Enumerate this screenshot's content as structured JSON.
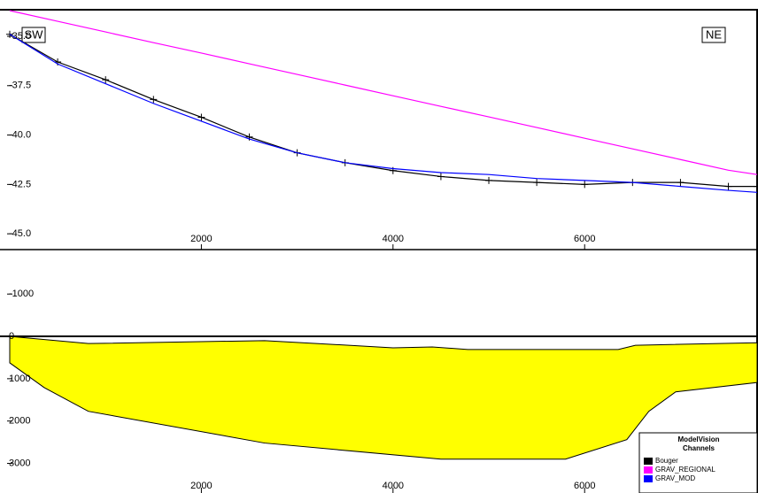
{
  "chart_data": [
    {
      "type": "line",
      "annotations": [
        "SW",
        "NE"
      ],
      "x": [
        0,
        500,
        1000,
        1500,
        2000,
        2500,
        3000,
        3500,
        4000,
        4500,
        5000,
        5500,
        6000,
        6500,
        7000,
        7500,
        7800
      ],
      "series": [
        {
          "name": "Bouger",
          "color": "#000000",
          "marker": "+",
          "values": [
            -34.9,
            -36.3,
            -37.2,
            -38.2,
            -39.1,
            -40.1,
            -40.9,
            -41.4,
            -41.8,
            -42.1,
            -42.3,
            -42.4,
            -42.5,
            -42.4,
            -42.4,
            -42.6,
            -42.6
          ]
        },
        {
          "name": "GRAV_REGIONAL",
          "color": "#ff00ff",
          "values": [
            -33.7,
            -34.24,
            -34.78,
            -35.32,
            -35.85,
            -36.39,
            -36.93,
            -37.47,
            -38.01,
            -38.55,
            -39.08,
            -39.62,
            -40.16,
            -40.7,
            -41.24,
            -41.78,
            -42.0
          ]
        },
        {
          "name": "GRAV_MOD",
          "color": "#0000ff",
          "values": [
            -34.9,
            -36.4,
            -37.4,
            -38.4,
            -39.3,
            -40.2,
            -40.9,
            -41.4,
            -41.7,
            -41.9,
            -42.0,
            -42.2,
            -42.3,
            -42.4,
            -42.6,
            -42.8,
            -42.9
          ]
        }
      ],
      "xlim": [
        0,
        7800
      ],
      "xticks": [
        2000,
        4000,
        6000
      ],
      "ylim": [
        -45.8,
        -33.7
      ],
      "yticks": [
        {
          "value": -35,
          "label": "-35.0"
        },
        -37.5,
        {
          "value": -40,
          "label": "-40.0"
        },
        -42.5,
        {
          "value": -45,
          "label": "-45.0"
        }
      ],
      "legend_title": [
        "ModelVision",
        "Channels"
      ],
      "legend": "bottom-right"
    },
    {
      "type": "area",
      "x": [
        0,
        820,
        2000,
        2660,
        4000,
        4410,
        4780,
        6350,
        6530,
        7800,
        7800,
        6950,
        6670,
        6440,
        5800,
        4500,
        2660,
        820,
        360,
        0
      ],
      "values": [
        0,
        170,
        125,
        100,
        270,
        250,
        310,
        310,
        210,
        150,
        1090,
        1310,
        1770,
        2440,
        2900,
        2900,
        2520,
        1770,
        1210,
        625
      ],
      "color": "#ffff00",
      "xlim": [
        0,
        7800
      ],
      "xticks": [
        2000,
        4000,
        6000
      ],
      "ylim": [
        3700,
        -2050
      ],
      "yticks": [
        -1000,
        0,
        1000,
        2000,
        3000
      ]
    }
  ]
}
